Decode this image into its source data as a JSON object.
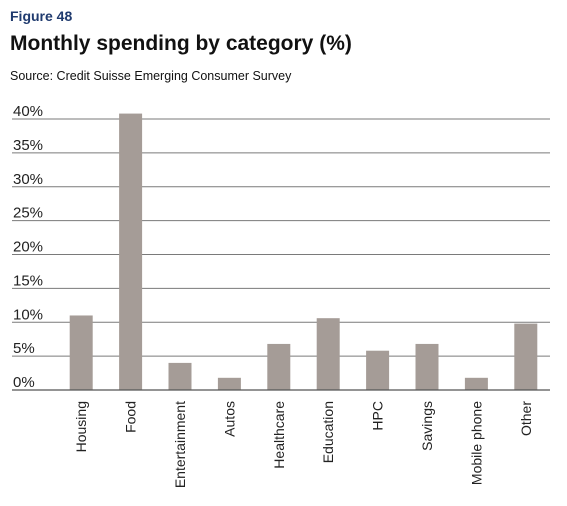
{
  "figure_label": "Figure 48",
  "chart_data": {
    "type": "bar",
    "title": "Monthly spending by category (%)",
    "source": "Source: Credit Suisse Emerging Consumer Survey",
    "categories": [
      "Housing",
      "Food",
      "Entertainment",
      "Autos",
      "Healthcare",
      "Education",
      "HPC",
      "Savings",
      "Mobile phone",
      "Other"
    ],
    "values": [
      11,
      40.8,
      4,
      1.8,
      6.8,
      10.6,
      5.8,
      6.8,
      1.8,
      9.8
    ],
    "yticks": [
      "0%",
      "5%",
      "10%",
      "15%",
      "20%",
      "25%",
      "30%",
      "35%",
      "40%"
    ],
    "ylim": [
      0,
      40
    ],
    "xlabel": "",
    "ylabel": "",
    "grid": true,
    "bar_color": "#a59c97"
  }
}
